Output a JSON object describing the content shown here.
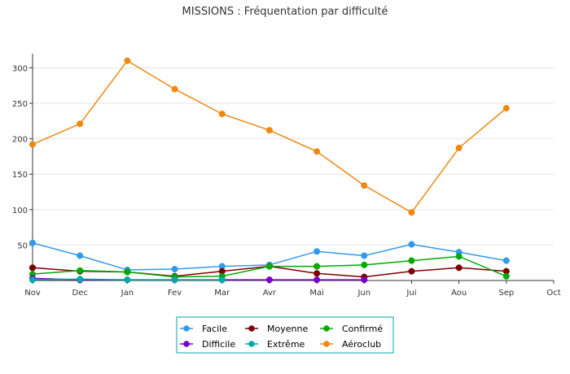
{
  "chart_data": {
    "type": "line",
    "title": "MISSIONS : Fréquentation par difficulté",
    "xlabel": "",
    "ylabel": "",
    "categories": [
      "Nov",
      "Dec",
      "Jan",
      "Fev",
      "Mar",
      "Avr",
      "Mai",
      "Jun",
      "Jui",
      "Aou",
      "Sep",
      "Oct"
    ],
    "ylim": [
      0,
      320
    ],
    "yticks": [
      50,
      100,
      150,
      200,
      250,
      300
    ],
    "grid": true,
    "legend_position": "bottom-center",
    "series": [
      {
        "name": "Facile",
        "color": "#3399ee",
        "values": [
          53,
          35,
          15,
          16,
          20,
          22,
          41,
          35,
          51,
          40,
          28,
          null
        ]
      },
      {
        "name": "Moyenne",
        "color": "#7a0000",
        "values": [
          18,
          13,
          12,
          6,
          13,
          20,
          10,
          5,
          13,
          18,
          13,
          null
        ]
      },
      {
        "name": "Confirmé",
        "color": "#00aa00",
        "values": [
          9,
          14,
          12,
          5,
          6,
          20,
          20,
          22,
          28,
          34,
          6,
          null
        ]
      },
      {
        "name": "Difficile",
        "color": "#7700cc",
        "values": [
          3,
          1,
          1,
          1,
          1,
          1,
          1,
          1,
          null,
          null,
          null,
          null
        ]
      },
      {
        "name": "Extrême",
        "color": "#00aaaa",
        "values": [
          1,
          2,
          1,
          1,
          1,
          null,
          null,
          null,
          null,
          null,
          null,
          null
        ]
      },
      {
        "name": "Aéroclub",
        "color": "#ee8811",
        "values": [
          192,
          221,
          310,
          270,
          235,
          212,
          182,
          134,
          96,
          187,
          243,
          null
        ]
      }
    ]
  }
}
